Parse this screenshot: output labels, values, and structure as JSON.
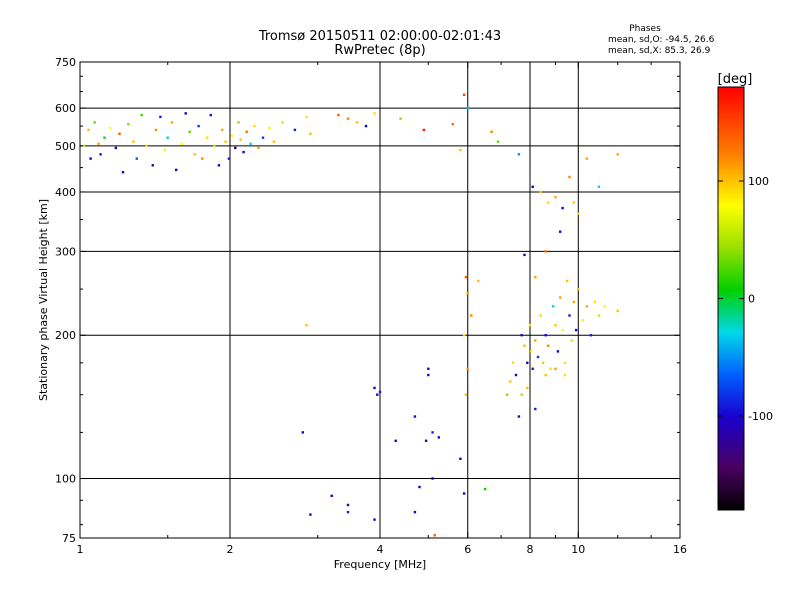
{
  "chart_data": {
    "type": "scatter",
    "title": "Tromsø 20150511 02:00:00-02:01:43",
    "subtitle": "RwPretec (8p)",
    "xlabel": "Frequency [MHz]",
    "ylabel": "Stationary phase Virtual Height [km]",
    "x_scale": "log",
    "y_scale": "log",
    "xlim": [
      1,
      16
    ],
    "ylim": [
      75,
      750
    ],
    "x_ticks": [
      {
        "value": 1,
        "label": "1"
      },
      {
        "value": 2,
        "label": "2"
      },
      {
        "value": 4,
        "label": "4"
      },
      {
        "value": 6,
        "label": "6"
      },
      {
        "value": 8,
        "label": "8"
      },
      {
        "value": 10,
        "label": "10"
      },
      {
        "value": 16,
        "label": "16"
      }
    ],
    "y_ticks": [
      {
        "value": 75,
        "label": "75"
      },
      {
        "value": 100,
        "label": "100"
      },
      {
        "value": 200,
        "label": "200"
      },
      {
        "value": 300,
        "label": "300"
      },
      {
        "value": 400,
        "label": "400"
      },
      {
        "value": 500,
        "label": "500"
      },
      {
        "value": 600,
        "label": "600"
      },
      {
        "value": 750,
        "label": "750"
      }
    ],
    "x_gridlines": [
      1,
      2,
      4,
      6,
      8,
      10
    ],
    "y_gridlines": [
      100,
      200,
      300,
      400,
      500,
      600
    ],
    "grid": true,
    "phase_stats": {
      "title": "Phases",
      "line_o": "mean, sd,O: -94.5, 26.6",
      "line_x": "mean, sd,X:  85.3, 26.9"
    },
    "colorbar": {
      "label": "[deg]",
      "range": [
        -180,
        180
      ],
      "ticks": [
        {
          "value": 100,
          "label": "100"
        },
        {
          "value": 0,
          "label": "0"
        },
        {
          "value": -100,
          "label": "-100"
        }
      ]
    },
    "series": [
      {
        "points": [
          [
            1.02,
            500,
            60
          ],
          [
            1.04,
            540,
            100
          ],
          [
            1.05,
            470,
            -100
          ],
          [
            1.07,
            560,
            30
          ],
          [
            1.09,
            505,
            110
          ],
          [
            1.1,
            480,
            -90
          ],
          [
            1.12,
            520,
            0
          ],
          [
            1.15,
            545,
            80
          ],
          [
            1.18,
            495,
            -110
          ],
          [
            1.2,
            530,
            140
          ],
          [
            1.22,
            440,
            -100
          ],
          [
            1.25,
            555,
            40
          ],
          [
            1.28,
            510,
            100
          ],
          [
            1.3,
            470,
            -70
          ],
          [
            1.33,
            580,
            20
          ],
          [
            1.36,
            500,
            90
          ],
          [
            1.4,
            455,
            -120
          ],
          [
            1.42,
            540,
            120
          ],
          [
            1.45,
            575,
            -90
          ],
          [
            1.48,
            490,
            70
          ],
          [
            1.5,
            520,
            -20
          ],
          [
            1.53,
            560,
            110
          ],
          [
            1.56,
            445,
            -100
          ],
          [
            1.6,
            505,
            80
          ],
          [
            1.63,
            585,
            -110
          ],
          [
            1.66,
            535,
            30
          ],
          [
            1.7,
            480,
            100
          ],
          [
            1.73,
            550,
            -80
          ],
          [
            1.76,
            470,
            120
          ],
          [
            1.8,
            520,
            90
          ],
          [
            1.83,
            580,
            -95
          ],
          [
            1.86,
            500,
            60
          ],
          [
            1.9,
            455,
            -100
          ],
          [
            1.93,
            540,
            110
          ],
          [
            1.96,
            510,
            100
          ],
          [
            1.99,
            470,
            -90
          ],
          [
            2.02,
            525,
            80
          ],
          [
            2.05,
            495,
            -120
          ],
          [
            2.08,
            560,
            40
          ],
          [
            2.1,
            515,
            100
          ],
          [
            2.13,
            485,
            -100
          ],
          [
            2.16,
            535,
            130
          ],
          [
            2.2,
            505,
            -30
          ],
          [
            2.24,
            550,
            90
          ],
          [
            2.28,
            495,
            110
          ],
          [
            2.33,
            520,
            -80
          ],
          [
            2.4,
            545,
            70
          ],
          [
            2.45,
            510,
            100
          ],
          [
            2.55,
            560,
            60
          ],
          [
            2.7,
            540,
            -90
          ],
          [
            2.85,
            575,
            90
          ],
          [
            2.9,
            530,
            100
          ],
          [
            3.3,
            580,
            140
          ],
          [
            3.45,
            570,
            120
          ],
          [
            3.6,
            560,
            100
          ],
          [
            3.75,
            550,
            -100
          ],
          [
            3.9,
            585,
            90
          ],
          [
            4.4,
            570,
            40
          ],
          [
            4.9,
            540,
            170
          ],
          [
            5.6,
            555,
            130
          ],
          [
            5.8,
            490,
            100
          ],
          [
            5.9,
            640,
            150
          ],
          [
            6.0,
            600,
            -40
          ],
          [
            6.7,
            535,
            120
          ],
          [
            6.9,
            510,
            30
          ],
          [
            7.6,
            480,
            -50
          ],
          [
            7.7,
            200,
            -100
          ],
          [
            7.8,
            190,
            100
          ],
          [
            7.9,
            175,
            -110
          ],
          [
            8.0,
            210,
            90
          ],
          [
            8.05,
            185,
            80
          ],
          [
            8.1,
            170,
            -90
          ],
          [
            8.2,
            195,
            110
          ],
          [
            8.3,
            180,
            -80
          ],
          [
            8.4,
            220,
            60
          ],
          [
            8.5,
            175,
            100
          ],
          [
            8.6,
            200,
            -100
          ],
          [
            8.7,
            190,
            120
          ],
          [
            8.8,
            170,
            90
          ],
          [
            8.9,
            230,
            -30
          ],
          [
            9.0,
            210,
            100
          ],
          [
            9.1,
            185,
            -110
          ],
          [
            9.2,
            240,
            110
          ],
          [
            9.3,
            205,
            80
          ],
          [
            9.4,
            175,
            90
          ],
          [
            9.5,
            260,
            100
          ],
          [
            9.6,
            220,
            -90
          ],
          [
            9.7,
            195,
            60
          ],
          [
            9.8,
            235,
            110
          ],
          [
            9.9,
            205,
            -100
          ],
          [
            10.0,
            250,
            100
          ],
          [
            10.2,
            215,
            70
          ],
          [
            10.4,
            230,
            110
          ],
          [
            10.6,
            200,
            -90
          ],
          [
            10.8,
            235,
            90
          ],
          [
            11.0,
            220,
            60
          ],
          [
            11.3,
            230,
            80
          ],
          [
            12.0,
            225,
            100
          ],
          [
            7.3,
            160,
            100
          ],
          [
            7.5,
            165,
            -100
          ],
          [
            7.7,
            150,
            50
          ],
          [
            7.9,
            155,
            100
          ],
          [
            8.2,
            140,
            -90
          ],
          [
            7.6,
            135,
            -110
          ],
          [
            7.2,
            150,
            40
          ],
          [
            7.4,
            175,
            90
          ],
          [
            8.6,
            165,
            100
          ],
          [
            9.0,
            170,
            110
          ],
          [
            9.4,
            165,
            90
          ],
          [
            8.1,
            410,
            -110
          ],
          [
            8.4,
            400,
            100
          ],
          [
            8.7,
            380,
            90
          ],
          [
            9.0,
            390,
            110
          ],
          [
            9.3,
            370,
            -100
          ],
          [
            9.6,
            430,
            120
          ],
          [
            9.8,
            380,
            100
          ],
          [
            10.0,
            360,
            90
          ],
          [
            10.4,
            470,
            110
          ],
          [
            11.0,
            410,
            -30
          ],
          [
            12.0,
            480,
            110
          ],
          [
            5.95,
            265,
            140
          ],
          [
            6.0,
            245,
            110
          ],
          [
            6.1,
            220,
            120
          ],
          [
            6.3,
            260,
            100
          ],
          [
            7.8,
            295,
            -110
          ],
          [
            8.2,
            265,
            110
          ],
          [
            8.6,
            300,
            130
          ],
          [
            9.2,
            330,
            -100
          ],
          [
            5.9,
            200,
            90
          ],
          [
            6.0,
            170,
            120
          ],
          [
            5.95,
            150,
            100
          ],
          [
            3.9,
            155,
            -100
          ],
          [
            3.95,
            150,
            -110
          ],
          [
            4.0,
            152,
            -90
          ],
          [
            2.8,
            125,
            -100
          ],
          [
            2.85,
            210,
            100
          ],
          [
            4.3,
            120,
            -110
          ],
          [
            4.7,
            135,
            -100
          ],
          [
            4.95,
            120,
            -110
          ],
          [
            5.1,
            125,
            -90
          ],
          [
            5.25,
            122,
            -100
          ],
          [
            5.0,
            170,
            -100
          ],
          [
            5.0,
            165,
            -110
          ],
          [
            5.8,
            110,
            -110
          ],
          [
            5.9,
            93,
            -100
          ],
          [
            3.2,
            92,
            -100
          ],
          [
            3.45,
            88,
            -110
          ],
          [
            3.45,
            85,
            -90
          ],
          [
            3.9,
            82,
            -100
          ],
          [
            4.7,
            85,
            -110
          ],
          [
            4.8,
            96,
            -100
          ],
          [
            5.1,
            100,
            -110
          ],
          [
            5.15,
            76,
            140
          ],
          [
            2.9,
            84,
            -100
          ],
          [
            6.5,
            95,
            10
          ]
        ]
      }
    ]
  }
}
